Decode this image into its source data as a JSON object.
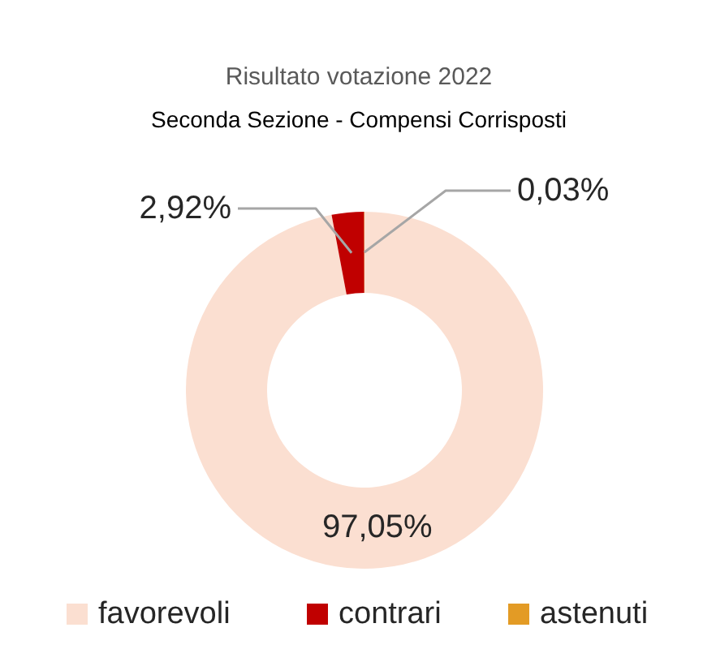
{
  "chart_data": {
    "type": "donut",
    "title": "Risultato votazione 2022",
    "subtitle": "Seconda Sezione - Compensi Corrisposti",
    "categories": [
      "favorevoli",
      "contrari",
      "astenuti"
    ],
    "values": [
      97.05,
      2.92,
      0.03
    ],
    "colors": [
      "#fbdfd1",
      "#c00000",
      "#e39b25"
    ],
    "value_labels": [
      "97,05%",
      "2,92%",
      "0,03%"
    ],
    "legend": "bottom"
  }
}
